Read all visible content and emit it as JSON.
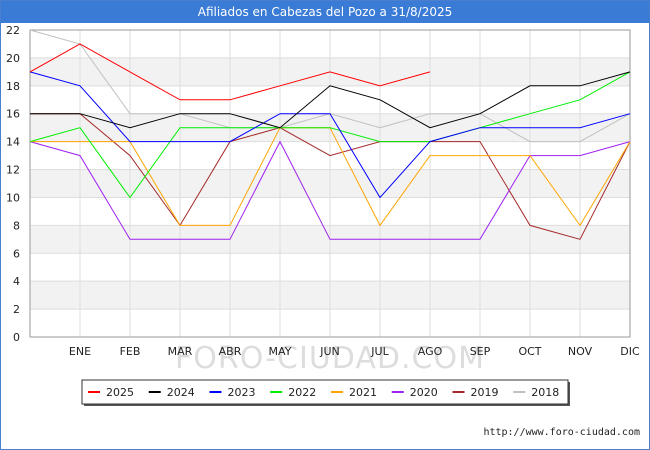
{
  "header": {
    "title": "Afiliados en Cabezas del Pozo a 31/8/2025"
  },
  "footer": {
    "url": "http://www.foro-ciudad.com"
  },
  "watermark": "FORO-CIUDAD.COM",
  "chart_data": {
    "type": "line",
    "title": "Afiliados en Cabezas del Pozo a 31/8/2025",
    "xlabel": "",
    "ylabel": "",
    "ylim": [
      0,
      22
    ],
    "yticks": [
      0,
      2,
      4,
      6,
      8,
      10,
      12,
      14,
      16,
      18,
      20,
      22
    ],
    "grid": true,
    "legend_position": "bottom-center",
    "categories": [
      "",
      "ENE",
      "FEB",
      "MAR",
      "ABR",
      "MAY",
      "JUN",
      "JUL",
      "AGO",
      "SEP",
      "OCT",
      "NOV",
      "DIC"
    ],
    "series": [
      {
        "name": "2025",
        "color": "#ff0000",
        "values": [
          19,
          21,
          19,
          17,
          17,
          18,
          19,
          18,
          19,
          null,
          null,
          null,
          null
        ]
      },
      {
        "name": "2024",
        "color": "#000000",
        "values": [
          16,
          16,
          15,
          16,
          16,
          15,
          18,
          17,
          15,
          16,
          18,
          18,
          19
        ]
      },
      {
        "name": "2023",
        "color": "#0000ff",
        "values": [
          19,
          18,
          14,
          14,
          14,
          16,
          16,
          10,
          14,
          15,
          15,
          15,
          16
        ]
      },
      {
        "name": "2022",
        "color": "#00ee00",
        "values": [
          14,
          15,
          10,
          15,
          15,
          15,
          15,
          14,
          14,
          15,
          16,
          17,
          19
        ]
      },
      {
        "name": "2021",
        "color": "#ffa500",
        "values": [
          14,
          14,
          14,
          8,
          8,
          15,
          15,
          8,
          13,
          13,
          13,
          8,
          14
        ]
      },
      {
        "name": "2020",
        "color": "#a020f0",
        "values": [
          14,
          13,
          7,
          7,
          7,
          14,
          7,
          7,
          7,
          7,
          13,
          13,
          14
        ]
      },
      {
        "name": "2019",
        "color": "#a52a2a",
        "values": [
          16,
          16,
          13,
          8,
          14,
          15,
          13,
          14,
          14,
          14,
          8,
          7,
          14
        ]
      },
      {
        "name": "2018",
        "color": "#c0c0c0",
        "values": [
          22,
          21,
          16,
          16,
          15,
          15,
          16,
          15,
          16,
          16,
          14,
          14,
          16
        ]
      }
    ]
  }
}
